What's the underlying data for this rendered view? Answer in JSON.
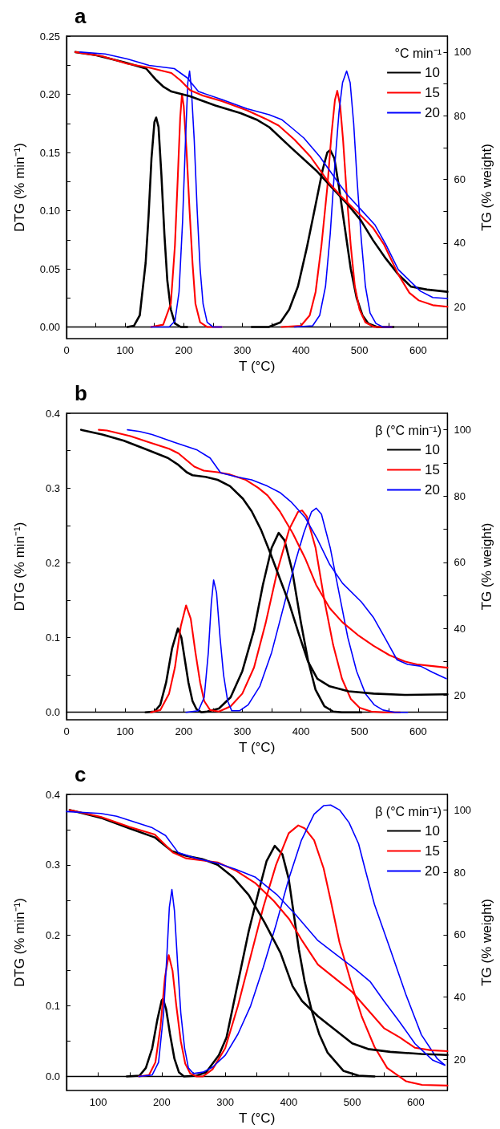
{
  "chart_data": [
    {
      "type": "line",
      "title": "a",
      "xlabel": "T (°C)",
      "ylabel": "DTG (% min⁻¹)",
      "y2label": "TG (% weight)",
      "legend_title": "°C min⁻¹",
      "legend": "top right",
      "xlim": [
        0,
        650
      ],
      "xticks": [
        0,
        {
          "value": 50,
          "label": null
        },
        100,
        {
          "value": 150,
          "label": null
        },
        200,
        {
          "value": 250,
          "label": null
        },
        300,
        {
          "value": 350,
          "label": null
        },
        400,
        {
          "value": 450,
          "label": null
        },
        500,
        {
          "value": 550,
          "label": null
        },
        600
      ],
      "ylim": [
        -0.01,
        0.25
      ],
      "yticks": [
        {
          "value": 0,
          "label": "0.00"
        },
        {
          "value": 0.025,
          "label": null
        },
        {
          "value": 0.05,
          "label": "0.05"
        },
        {
          "value": 0.075,
          "label": null
        },
        {
          "value": 0.1,
          "label": "0.10"
        },
        {
          "value": 0.125,
          "label": null
        },
        {
          "value": 0.15,
          "label": "0.15"
        },
        {
          "value": 0.175,
          "label": null
        },
        {
          "value": 0.2,
          "label": "0.20"
        },
        {
          "value": 0.225,
          "label": null
        },
        {
          "value": 0.25,
          "label": "0.25"
        }
      ],
      "y2lim": [
        10,
        105
      ],
      "y2ticks": [
        20,
        {
          "value": 30,
          "label": null
        },
        40,
        {
          "value": 50,
          "label": null
        },
        60,
        {
          "value": 70,
          "label": null
        },
        80,
        {
          "value": 90,
          "label": null
        },
        100
      ],
      "series": [
        {
          "name": "10",
          "color": "#000000",
          "x": [
            104,
            115,
            125,
            135,
            140,
            145,
            150,
            153,
            157,
            162,
            167,
            172,
            178,
            185,
            195,
            206
          ],
          "values": [
            0,
            0.001,
            0.01,
            0.055,
            0.095,
            0.145,
            0.176,
            0.18,
            0.172,
            0.13,
            0.08,
            0.04,
            0.015,
            0.003,
            0,
            0
          ]
        },
        {
          "name": "15",
          "color": "#ff0000",
          "x": [
            144,
            165,
            178,
            185,
            190,
            194,
            197,
            200,
            205,
            210,
            215,
            220,
            228,
            240,
            265
          ],
          "values": [
            0,
            0.002,
            0.02,
            0.07,
            0.13,
            0.18,
            0.2,
            0.19,
            0.15,
            0.1,
            0.055,
            0.02,
            0.004,
            0,
            0
          ]
        },
        {
          "name": "20",
          "color": "#0000ff",
          "x": [
            144,
            175,
            185,
            192,
            198,
            203,
            207,
            210,
            213,
            218,
            223,
            228,
            233,
            240,
            250,
            265
          ],
          "values": [
            0,
            0,
            0.005,
            0.03,
            0.09,
            0.16,
            0.21,
            0.22,
            0.205,
            0.16,
            0.1,
            0.05,
            0.02,
            0.004,
            0,
            0
          ]
        },
        {
          "color": "#000000",
          "x": [
            316,
            345,
            365,
            380,
            395,
            410,
            425,
            437,
            445,
            450,
            457,
            465,
            475,
            485,
            495,
            505,
            515,
            530,
            558
          ],
          "values": [
            0,
            0,
            0.004,
            0.015,
            0.035,
            0.068,
            0.105,
            0.135,
            0.15,
            0.152,
            0.145,
            0.12,
            0.085,
            0.05,
            0.025,
            0.01,
            0.003,
            0,
            0
          ]
        },
        {
          "color": "#ff0000",
          "x": [
            367,
            400,
            415,
            425,
            435,
            445,
            452,
            458,
            462,
            467,
            472,
            478,
            485,
            492,
            500,
            510,
            525,
            555
          ],
          "values": [
            0,
            0.001,
            0.01,
            0.03,
            0.07,
            0.12,
            0.165,
            0.195,
            0.203,
            0.19,
            0.16,
            0.115,
            0.07,
            0.035,
            0.015,
            0.004,
            0,
            0
          ]
        },
        {
          "color": "#0000ff",
          "x": [
            389,
            420,
            432,
            442,
            450,
            458,
            465,
            471,
            478,
            484,
            490,
            496,
            503,
            510,
            518,
            528,
            540,
            555
          ],
          "values": [
            0,
            0.001,
            0.01,
            0.035,
            0.08,
            0.14,
            0.185,
            0.21,
            0.22,
            0.21,
            0.175,
            0.125,
            0.075,
            0.035,
            0.012,
            0.003,
            0,
            0
          ]
        },
        {
          "color": "#000000",
          "axis": "y2",
          "x": [
            15,
            50,
            98,
            136,
            152,
            166,
            179,
            211,
            254,
            297,
            324,
            346,
            383,
            426,
            453,
            480,
            502,
            523,
            545,
            566,
            588,
            615,
            650
          ],
          "values": [
            100,
            99,
            96.8,
            94.8,
            91.4,
            89,
            87.6,
            86.1,
            83.2,
            80.8,
            78.8,
            76.4,
            70,
            62.8,
            57.4,
            52.1,
            47.2,
            40.9,
            35.1,
            30.2,
            26.3,
            25.4,
            24.7
          ]
        },
        {
          "color": "#ff0000",
          "axis": "y2",
          "x": [
            15,
            61,
            104,
            141,
            179,
            195,
            211,
            233,
            265,
            308,
            340,
            362,
            389,
            416,
            448,
            469,
            502,
            523,
            542,
            566,
            585,
            601,
            625,
            650
          ],
          "values": [
            100,
            98.7,
            96.3,
            95.1,
            93.4,
            91,
            88,
            86.3,
            84.6,
            81.7,
            79,
            76.9,
            72.5,
            67.2,
            58.9,
            54.6,
            48.7,
            44.8,
            39.5,
            30.2,
            24.4,
            22,
            20.5,
            20
          ]
        },
        {
          "color": "#0000ff",
          "axis": "y2",
          "x": [
            23,
            66,
            104,
            141,
            184,
            206,
            225,
            265,
            308,
            346,
            367,
            383,
            405,
            432,
            464,
            480,
            502,
            526,
            545,
            566,
            582,
            604,
            625,
            650
          ],
          "values": [
            100,
            99.4,
            97.8,
            95.8,
            94.8,
            91.9,
            87.6,
            85.1,
            82.2,
            80.3,
            78.8,
            76.4,
            73,
            67.2,
            58.9,
            55,
            50.6,
            45.8,
            39.5,
            31.7,
            28.8,
            24.9,
            22.9,
            22.6
          ]
        }
      ]
    },
    {
      "type": "line",
      "title": "b",
      "xlabel": "T (°C)",
      "ylabel": "DTG (% min⁻¹)",
      "y2label": "TG (% weight)",
      "legend_title": "β (°C min⁻¹)",
      "legend": "top right",
      "xlim": [
        0,
        650
      ],
      "xticks": [
        0,
        {
          "value": 50,
          "label": null
        },
        100,
        {
          "value": 150,
          "label": null
        },
        200,
        {
          "value": 250,
          "label": null
        },
        300,
        {
          "value": 350,
          "label": null
        },
        400,
        {
          "value": 450,
          "label": null
        },
        500,
        {
          "value": 550,
          "label": null
        },
        600
      ],
      "ylim": [
        -0.01,
        0.4
      ],
      "yticks": [
        {
          "value": 0,
          "label": "0.0"
        },
        {
          "value": 0.05,
          "label": null
        },
        0.1,
        {
          "value": 0.15,
          "label": null
        },
        0.2,
        {
          "value": 0.25,
          "label": null
        },
        0.3,
        {
          "value": 0.35,
          "label": null
        },
        0.4
      ],
      "y2lim": [
        12.5,
        105
      ],
      "y2ticks": [
        20,
        {
          "value": 30,
          "label": null
        },
        40,
        {
          "value": 50,
          "label": null
        },
        60,
        {
          "value": 70,
          "label": null
        },
        80,
        {
          "value": 90,
          "label": null
        },
        100
      ],
      "series": [
        {
          "name": "10",
          "color": "#000000",
          "x": [
            135,
            150,
            160,
            170,
            180,
            190,
            196,
            202,
            208,
            215,
            222,
            230,
            240,
            260,
            280,
            300,
            320,
            335,
            350,
            362,
            372,
            385,
            400,
            412,
            425,
            440,
            455,
            470,
            503
          ],
          "values": [
            0,
            0.001,
            0.01,
            0.04,
            0.085,
            0.112,
            0.1,
            0.07,
            0.04,
            0.015,
            0.004,
            0,
            0.001,
            0.005,
            0.02,
            0.055,
            0.11,
            0.17,
            0.22,
            0.24,
            0.23,
            0.19,
            0.12,
            0.07,
            0.03,
            0.008,
            0.001,
            0,
            0
          ]
        },
        {
          "name": "15",
          "color": "#ff0000",
          "x": [
            144,
            160,
            175,
            185,
            195,
            204,
            212,
            220,
            228,
            235,
            245,
            260,
            280,
            300,
            320,
            340,
            360,
            380,
            395,
            402,
            410,
            425,
            440,
            455,
            470,
            485,
            500,
            520,
            540,
            569
          ],
          "values": [
            0,
            0.003,
            0.025,
            0.06,
            0.115,
            0.143,
            0.125,
            0.08,
            0.04,
            0.015,
            0.003,
            0.001,
            0.008,
            0.025,
            0.06,
            0.12,
            0.19,
            0.245,
            0.268,
            0.27,
            0.262,
            0.22,
            0.15,
            0.09,
            0.045,
            0.018,
            0.006,
            0.001,
            0,
            0
          ]
        },
        {
          "name": "20",
          "color": "#0000ff",
          "x": [
            204,
            225,
            235,
            242,
            247,
            251,
            256,
            262,
            268,
            275,
            282,
            295,
            310,
            330,
            350,
            370,
            390,
            405,
            418,
            426,
            435,
            450,
            465,
            480,
            495,
            510,
            525,
            540,
            560,
            582
          ],
          "values": [
            0,
            0.002,
            0.02,
            0.08,
            0.145,
            0.177,
            0.16,
            0.1,
            0.05,
            0.015,
            0.002,
            0.002,
            0.01,
            0.035,
            0.08,
            0.14,
            0.2,
            0.24,
            0.268,
            0.273,
            0.265,
            0.22,
            0.16,
            0.1,
            0.055,
            0.025,
            0.01,
            0.003,
            0,
            0
          ]
        },
        {
          "color": "#000000",
          "axis": "y2",
          "x": [
            25,
            61,
            98,
            136,
            173,
            191,
            205,
            215,
            237,
            258,
            279,
            301,
            316,
            332,
            348,
            364,
            380,
            396,
            412,
            428,
            449,
            481,
            524,
            577,
            650
          ],
          "values": [
            100,
            98.6,
            96.7,
            94.1,
            91.5,
            89.4,
            87.2,
            86.3,
            85.8,
            84.9,
            83,
            79.2,
            75.4,
            69.8,
            62.7,
            55.1,
            47.6,
            38.6,
            30.1,
            24.9,
            22.6,
            21.1,
            20.4,
            20,
            20.2
          ]
        },
        {
          "color": "#ff0000",
          "axis": "y2",
          "x": [
            55,
            69,
            109,
            141,
            175,
            191,
            218,
            234,
            258,
            279,
            306,
            327,
            343,
            364,
            386,
            407,
            426,
            449,
            471,
            497,
            524,
            551,
            577,
            598,
            625,
            650
          ],
          "values": [
            100,
            99.8,
            98.1,
            96.2,
            94.3,
            92.9,
            88.9,
            87.7,
            87.2,
            86.5,
            84.9,
            82.5,
            80.2,
            75.4,
            68.8,
            61.3,
            53.2,
            46.2,
            41.9,
            38.1,
            34.8,
            32,
            30.1,
            29.2,
            28.7,
            28.2
          ]
        },
        {
          "color": "#0000ff",
          "axis": "y2",
          "x": [
            104,
            125,
            146,
            184,
            223,
            245,
            263,
            290,
            316,
            343,
            364,
            383,
            407,
            428,
            449,
            471,
            503,
            524,
            545,
            564,
            582,
            604,
            625,
            648
          ],
          "values": [
            100,
            99.5,
            98.6,
            96.2,
            93.9,
            91.5,
            87,
            85.8,
            84.9,
            83,
            81.1,
            78.3,
            73.6,
            67,
            59.4,
            53.7,
            48.1,
            43.3,
            36.7,
            30.6,
            29.2,
            28.7,
            26.8,
            24.9
          ]
        }
      ]
    },
    {
      "type": "line",
      "title": "c",
      "xlabel": "T (°C)",
      "ylabel": "DTG (% min⁻¹)",
      "y2label": "TG (% weight)",
      "legend_title": "β (°C min⁻¹)",
      "legend": "top right",
      "xlim": [
        50,
        650
      ],
      "xticks": [
        100,
        {
          "value": 150,
          "label": null
        },
        200,
        {
          "value": 250,
          "label": null
        },
        300,
        {
          "value": 350,
          "label": null
        },
        400,
        {
          "value": 450,
          "label": null
        },
        500,
        {
          "value": 550,
          "label": null
        },
        600
      ],
      "ylim": [
        -0.02,
        0.4
      ],
      "yticks": [
        {
          "value": 0,
          "label": "0.0"
        },
        {
          "value": 0.05,
          "label": null
        },
        0.1,
        {
          "value": 0.15,
          "label": null
        },
        0.2,
        {
          "value": 0.25,
          "label": null
        },
        0.3,
        {
          "value": 0.35,
          "label": null
        },
        0.4
      ],
      "y2lim": [
        10,
        105
      ],
      "y2ticks": [
        20,
        {
          "value": 30,
          "label": null
        },
        40,
        {
          "value": 50,
          "label": null
        },
        60,
        {
          "value": 70,
          "label": null
        },
        80,
        {
          "value": 90,
          "label": null
        },
        100
      ],
      "series": [
        {
          "name": "10",
          "color": "#000000",
          "x": [
            145,
            165,
            175,
            185,
            193,
            200,
            202,
            207,
            213,
            220,
            227,
            235,
            255,
            270,
            290,
            302,
            317,
            337,
            352,
            365,
            378,
            390,
            400,
            416,
            425,
            436,
            448,
            461,
            486,
            510,
            535
          ],
          "values": [
            0,
            0.001,
            0.012,
            0.04,
            0.08,
            0.108,
            0.11,
            0.095,
            0.06,
            0.025,
            0.006,
            0,
            0.001,
            0.006,
            0.03,
            0.055,
            0.12,
            0.206,
            0.26,
            0.305,
            0.327,
            0.315,
            0.28,
            0.18,
            0.135,
            0.094,
            0.06,
            0.034,
            0.008,
            0.001,
            0
          ]
        },
        {
          "name": "15",
          "color": "#ff0000",
          "x": [
            164,
            180,
            190,
            198,
            205,
            211,
            217,
            223,
            230,
            237,
            245,
            255,
            265,
            280,
            300,
            320,
            340,
            360,
            380,
            400,
            415,
            425,
            440,
            455,
            466,
            480,
            500,
            515,
            535,
            555,
            585,
            610,
            650
          ],
          "values": [
            0,
            0.002,
            0.02,
            0.07,
            0.14,
            0.172,
            0.15,
            0.1,
            0.05,
            0.018,
            0.004,
            0,
            0,
            0.01,
            0.04,
            0.1,
            0.17,
            0.24,
            0.3,
            0.345,
            0.356,
            0.352,
            0.335,
            0.295,
            0.25,
            0.19,
            0.128,
            0.085,
            0.042,
            0.012,
            -0.007,
            -0.012,
            -0.013
          ]
        },
        {
          "name": "20",
          "color": "#0000ff",
          "x": [
            164,
            185,
            195,
            203,
            208,
            212,
            216,
            220,
            225,
            230,
            236,
            242,
            250,
            265,
            280,
            300,
            320,
            340,
            360,
            380,
            400,
            420,
            440,
            455,
            466,
            480,
            495,
            510,
            520,
            535,
            560,
            585,
            609,
            634,
            646
          ],
          "values": [
            0,
            0.002,
            0.02,
            0.09,
            0.17,
            0.24,
            0.265,
            0.235,
            0.16,
            0.09,
            0.04,
            0.012,
            0.004,
            0.006,
            0.013,
            0.03,
            0.06,
            0.1,
            0.155,
            0.215,
            0.28,
            0.335,
            0.372,
            0.384,
            0.385,
            0.378,
            0.36,
            0.33,
            0.295,
            0.244,
            0.18,
            0.115,
            0.059,
            0.025,
            0.016
          ]
        },
        {
          "color": "#000000",
          "axis": "y2",
          "x": [
            55,
            104,
            149,
            189,
            216,
            238,
            263,
            288,
            312,
            337,
            362,
            387,
            406,
            421,
            446,
            476,
            500,
            525,
            560,
            609,
            650
          ],
          "values": [
            100,
            97.5,
            94.1,
            91.2,
            86.8,
            85.3,
            84.3,
            82.4,
            78.5,
            72.7,
            63.9,
            54.2,
            43.5,
            38.7,
            33.8,
            29,
            25.1,
            23.3,
            22.4,
            21.7,
            21.4
          ]
        },
        {
          "color": "#ff0000",
          "axis": "y2",
          "x": [
            55,
            104,
            149,
            189,
            218,
            238,
            288,
            317,
            347,
            377,
            401,
            421,
            446,
            476,
            500,
            525,
            550,
            575,
            599,
            624,
            650
          ],
          "values": [
            100,
            97.8,
            94.6,
            92.1,
            86.3,
            84.5,
            83.2,
            80.5,
            76.6,
            70.7,
            64.9,
            58.1,
            50.4,
            45.5,
            41.6,
            35.8,
            30,
            27,
            23.7,
            22.9,
            22.6
          ]
        },
        {
          "color": "#0000ff",
          "axis": "y2",
          "x": [
            50,
            104,
            129,
            184,
            206,
            226,
            258,
            288,
            317,
            347,
            382,
            411,
            446,
            471,
            505,
            528,
            550,
            575,
            599,
            627,
            646
          ],
          "values": [
            99.5,
            98.9,
            98,
            94.4,
            91.8,
            86.3,
            84.3,
            82.9,
            80.9,
            78.5,
            72.7,
            66.4,
            58.1,
            54.2,
            48.9,
            45,
            38.7,
            31.9,
            25,
            19.7,
            18.1
          ]
        }
      ]
    }
  ]
}
